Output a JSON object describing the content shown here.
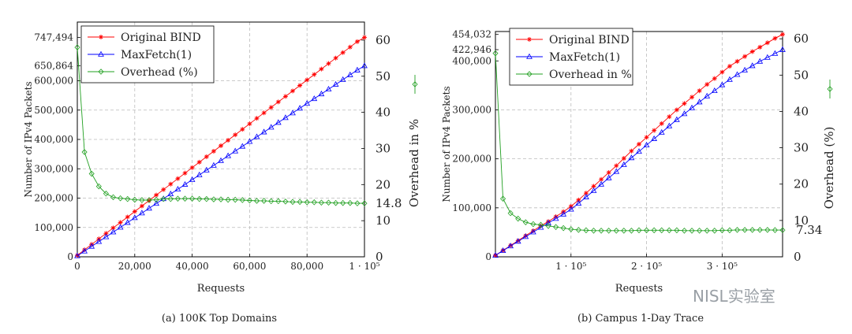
{
  "watermark": "NISL实验室",
  "colors": {
    "original": "#ff0000",
    "maxfetch": "#0000ff",
    "overhead": "#22a022"
  },
  "chart_data": [
    {
      "type": "line",
      "caption": "(a) 100K Top Domains",
      "xlabel": "Requests",
      "ylabel": "Number of IPv4 Packets",
      "y2label": "Overhead in %",
      "xlim": [
        0,
        100000
      ],
      "ylim": [
        0,
        800000
      ],
      "y2lim": [
        0,
        65
      ],
      "xticks": [
        0,
        20000,
        40000,
        60000,
        80000,
        100000
      ],
      "xtick_labels": [
        "0",
        "20,000",
        "40,000",
        "60,000",
        "80,000",
        "1 · 10⁵"
      ],
      "yticks": [
        0,
        100000,
        200000,
        300000,
        400000,
        500000,
        600000
      ],
      "ytick_labels": [
        "0",
        "100,000",
        "200,000",
        "300,000",
        "400,000",
        "500,000",
        "600,000"
      ],
      "y_annotations": [
        {
          "value": 747494,
          "label": "747,494"
        },
        {
          "value": 650864,
          "label": "650,864"
        }
      ],
      "y2ticks": [
        0,
        10,
        20,
        30,
        40,
        50,
        60
      ],
      "y2tick_labels": [
        "0",
        "10",
        "20",
        "30",
        "40",
        "50",
        "60"
      ],
      "y2_annotations": [
        {
          "value": 14.8,
          "label": "14.8"
        }
      ],
      "grid": true,
      "legend_position": "top-left",
      "x": [
        0,
        2500,
        5000,
        7500,
        10000,
        12500,
        15000,
        17500,
        20000,
        22500,
        25000,
        27500,
        30000,
        32500,
        35000,
        37500,
        40000,
        42500,
        45000,
        47500,
        50000,
        52500,
        55000,
        57500,
        60000,
        62500,
        65000,
        67500,
        70000,
        72500,
        75000,
        77500,
        80000,
        82500,
        85000,
        87500,
        90000,
        92500,
        95000,
        97500,
        100000
      ],
      "series": [
        {
          "name": "Original BIND",
          "axis": "left",
          "marker": "star",
          "values": [
            5000,
            23700,
            42300,
            61000,
            79700,
            98400,
            117000,
            135700,
            154400,
            173100,
            191700,
            210400,
            229100,
            247800,
            266400,
            285100,
            303800,
            322500,
            341100,
            359800,
            378500,
            397200,
            415800,
            434500,
            453200,
            471900,
            490500,
            509200,
            527900,
            546600,
            565200,
            583900,
            602600,
            621300,
            639900,
            658600,
            677300,
            696000,
            714600,
            733300,
            747494
          ]
        },
        {
          "name": "MaxFetch(1)",
          "axis": "left",
          "marker": "triangle",
          "values": [
            3000,
            19200,
            35500,
            51700,
            67900,
            84200,
            100400,
            116700,
            132900,
            149100,
            165400,
            181600,
            197800,
            214100,
            230300,
            246500,
            262800,
            279000,
            295300,
            311500,
            327700,
            344000,
            360200,
            376400,
            392700,
            408900,
            425100,
            441400,
            457600,
            473900,
            490100,
            506300,
            522600,
            538800,
            555000,
            571300,
            587500,
            603700,
            620000,
            636200,
            650864
          ]
        },
        {
          "name": "Overhead (%)",
          "axis": "right",
          "marker": "diamond",
          "values": [
            58,
            29,
            23,
            19.5,
            17.5,
            16.5,
            16.2,
            16,
            15.8,
            15.7,
            15.7,
            15.8,
            16,
            16,
            16.1,
            16.1,
            16.1,
            16,
            16,
            15.9,
            15.9,
            15.8,
            15.8,
            15.7,
            15.6,
            15.5,
            15.5,
            15.4,
            15.4,
            15.3,
            15.2,
            15.2,
            15.1,
            15.1,
            15,
            15,
            14.9,
            14.9,
            14.9,
            14.8,
            14.8
          ]
        }
      ]
    },
    {
      "type": "line",
      "caption": "(b) Campus 1-Day Trace",
      "xlabel": "Requests",
      "ylabel": "Number of IPv4 Packets",
      "y2label": "Overhead (%)",
      "xlim": [
        0,
        380000
      ],
      "ylim": [
        0,
        460000
      ],
      "y2lim": [
        0,
        62
      ],
      "xticks": [
        100000,
        200000,
        300000
      ],
      "xtick_labels": [
        "1 · 10⁵",
        "2 · 10⁵",
        "3 · 10⁵"
      ],
      "yticks": [
        0,
        100000,
        200000,
        300000
      ],
      "ytick_labels": [
        "0",
        "100,000",
        "200,000",
        "300,000"
      ],
      "y_annotations": [
        {
          "value": 454032,
          "label": "454,032"
        },
        {
          "value": 422946,
          "label": "422,946"
        },
        {
          "value": 400000,
          "label": "400,000"
        }
      ],
      "y2ticks": [
        0,
        10,
        20,
        30,
        40,
        50,
        60
      ],
      "y2tick_labels": [
        "0",
        "10",
        "20",
        "30",
        "40",
        "50",
        "60"
      ],
      "y2_annotations": [
        {
          "value": 7.34,
          "label": "7.34"
        }
      ],
      "grid": true,
      "legend_position": "top-left",
      "x": [
        0,
        10000,
        20000,
        30000,
        40000,
        50000,
        60000,
        70000,
        80000,
        90000,
        100000,
        110000,
        120000,
        130000,
        140000,
        150000,
        160000,
        170000,
        180000,
        190000,
        200000,
        210000,
        220000,
        230000,
        240000,
        250000,
        260000,
        270000,
        280000,
        290000,
        300000,
        310000,
        320000,
        330000,
        340000,
        350000,
        360000,
        370000,
        380000
      ],
      "series": [
        {
          "name": "Original BIND",
          "axis": "left",
          "marker": "star",
          "values": [
            3000,
            13000,
            23000,
            33000,
            43000,
            53000,
            63000,
            72000,
            82000,
            92000,
            103000,
            116000,
            130000,
            144000,
            158000,
            172000,
            186000,
            201000,
            216000,
            230000,
            244000,
            258000,
            272000,
            286000,
            300000,
            313000,
            326000,
            339000,
            352000,
            364000,
            377000,
            389000,
            399000,
            409000,
            419000,
            428000,
            437000,
            446000,
            454032
          ]
        },
        {
          "name": "MaxFetch(1)",
          "axis": "left",
          "marker": "triangle",
          "values": [
            2800,
            12500,
            22000,
            31500,
            41000,
            50500,
            60000,
            69000,
            78000,
            87000,
            97000,
            109000,
            122000,
            135000,
            148000,
            161000,
            174000,
            188000,
            202000,
            215000,
            228000,
            241000,
            254000,
            267000,
            280000,
            292000,
            304000,
            316000,
            328000,
            339000,
            351000,
            362000,
            372000,
            381000,
            390000,
            399000,
            407000,
            415000,
            422946
          ]
        },
        {
          "name": "Overhead in %",
          "axis": "right",
          "marker": "diamond",
          "values": [
            56,
            16,
            12,
            10.5,
            9.5,
            9,
            8.8,
            8.5,
            8.2,
            7.9,
            7.6,
            7.4,
            7.3,
            7.2,
            7.2,
            7.2,
            7.2,
            7.2,
            7.2,
            7.3,
            7.3,
            7.3,
            7.3,
            7.3,
            7.3,
            7.2,
            7.2,
            7.2,
            7.2,
            7.2,
            7.3,
            7.3,
            7.4,
            7.4,
            7.4,
            7.4,
            7.4,
            7.35,
            7.34
          ]
        }
      ]
    }
  ]
}
